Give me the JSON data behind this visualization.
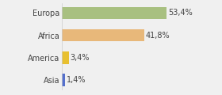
{
  "categories": [
    "Europa",
    "Africa",
    "America",
    "Asia"
  ],
  "values": [
    53.4,
    41.8,
    3.4,
    1.4
  ],
  "labels": [
    "53,4%",
    "41,8%",
    "3,4%",
    "1,4%"
  ],
  "bar_colors": [
    "#a8c080",
    "#e8b87a",
    "#e8c030",
    "#5570cc"
  ],
  "background_color": "#f0f0f0",
  "xlim": [
    0,
    68
  ],
  "bar_height": 0.55,
  "label_fontsize": 7,
  "ytick_fontsize": 7
}
